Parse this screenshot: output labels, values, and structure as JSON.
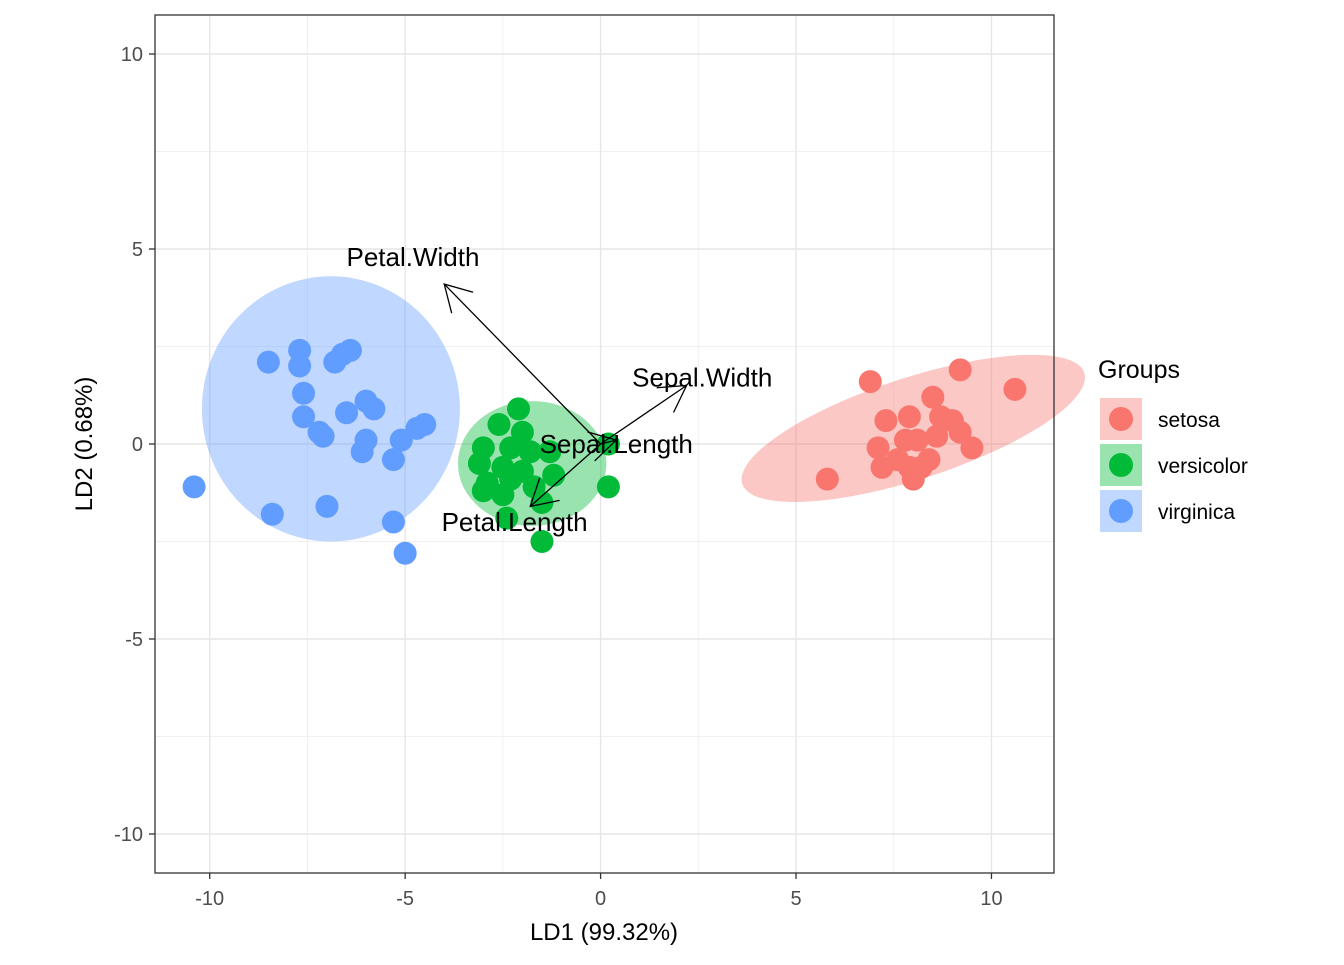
{
  "chart_data": {
    "type": "scatter",
    "xlabel": "LD1 (99.32%)",
    "ylabel": "LD2 (0.68%)",
    "xlim": [
      -11.4,
      11.6
    ],
    "ylim": [
      -11,
      11
    ],
    "x_ticks": [
      -10,
      -5,
      0,
      5,
      10
    ],
    "y_ticks": [
      -10,
      -5,
      0,
      5,
      10
    ],
    "x_tick_labels": [
      "-10",
      "-5",
      "0",
      "5",
      "10"
    ],
    "y_tick_labels": [
      "-10",
      "-5",
      "0",
      "5",
      "10"
    ],
    "grid": true,
    "legend": {
      "title": "Groups",
      "placement": "right",
      "entries": [
        "setosa",
        "versicolor",
        "virginica"
      ]
    },
    "series": [
      {
        "name": "setosa",
        "color": "#F8766D",
        "ellipse": {
          "cx": 8.0,
          "cy": 0.4,
          "rx": 4.6,
          "ry": 1.3,
          "angle_deg": 18
        },
        "points": [
          [
            6.9,
            1.6
          ],
          [
            9.2,
            1.9
          ],
          [
            10.6,
            1.4
          ],
          [
            8.5,
            1.2
          ],
          [
            7.9,
            0.7
          ],
          [
            7.3,
            0.6
          ],
          [
            8.7,
            0.7
          ],
          [
            9.0,
            0.6
          ],
          [
            8.6,
            0.2
          ],
          [
            9.2,
            0.3
          ],
          [
            8.1,
            0.1
          ],
          [
            7.8,
            0.1
          ],
          [
            7.1,
            -0.1
          ],
          [
            9.5,
            -0.1
          ],
          [
            8.4,
            -0.4
          ],
          [
            7.6,
            -0.4
          ],
          [
            8.2,
            -0.6
          ],
          [
            7.9,
            -0.6
          ],
          [
            7.2,
            -0.6
          ],
          [
            8.0,
            -0.9
          ],
          [
            5.8,
            -0.9
          ]
        ]
      },
      {
        "name": "versicolor",
        "color": "#00BA38",
        "ellipse": {
          "cx": -1.75,
          "cy": -0.5,
          "rx": 1.9,
          "ry": 1.6,
          "angle_deg": 0
        },
        "points": [
          [
            -2.1,
            0.9
          ],
          [
            -2.6,
            0.5
          ],
          [
            -2.0,
            0.3
          ],
          [
            -3.0,
            -0.1
          ],
          [
            -2.3,
            -0.1
          ],
          [
            -1.8,
            -0.2
          ],
          [
            -1.3,
            -0.2
          ],
          [
            0.2,
            0.0
          ],
          [
            -3.1,
            -0.5
          ],
          [
            -2.5,
            -0.6
          ],
          [
            -2.0,
            -0.7
          ],
          [
            -1.2,
            -0.8
          ],
          [
            -2.9,
            -1.0
          ],
          [
            -2.3,
            -0.9
          ],
          [
            -1.7,
            -1.1
          ],
          [
            -3.0,
            -1.2
          ],
          [
            -2.5,
            -1.3
          ],
          [
            -1.5,
            -1.5
          ],
          [
            -2.4,
            -1.9
          ],
          [
            -1.5,
            -2.5
          ],
          [
            0.2,
            -1.1
          ]
        ]
      },
      {
        "name": "virginica",
        "color": "#619CFF",
        "ellipse": {
          "cx": -6.9,
          "cy": 0.9,
          "rx": 3.3,
          "ry": 3.4,
          "angle_deg": 0
        },
        "points": [
          [
            -7.7,
            2.4
          ],
          [
            -6.4,
            2.4
          ],
          [
            -6.6,
            2.3
          ],
          [
            -6.8,
            2.1
          ],
          [
            -8.5,
            2.1
          ],
          [
            -7.7,
            2.0
          ],
          [
            -7.6,
            1.3
          ],
          [
            -6.0,
            1.1
          ],
          [
            -5.8,
            0.9
          ],
          [
            -6.5,
            0.8
          ],
          [
            -7.6,
            0.7
          ],
          [
            -4.5,
            0.5
          ],
          [
            -4.7,
            0.4
          ],
          [
            -7.2,
            0.3
          ],
          [
            -7.1,
            0.2
          ],
          [
            -6.0,
            0.1
          ],
          [
            -5.1,
            0.1
          ],
          [
            -6.1,
            -0.2
          ],
          [
            -5.3,
            -0.4
          ],
          [
            -10.4,
            -1.1
          ],
          [
            -8.4,
            -1.8
          ],
          [
            -7.0,
            -1.6
          ],
          [
            -5.3,
            -2.0
          ],
          [
            -5.0,
            -2.8
          ]
        ]
      }
    ],
    "arrows": [
      {
        "label": "Petal.Width",
        "x": -4.0,
        "y": 4.1,
        "label_x": -4.8,
        "label_y": 4.8
      },
      {
        "label": "Sepal.Width",
        "x": 2.2,
        "y": 1.5,
        "label_x": 2.6,
        "label_y": 1.7
      },
      {
        "label": "Sepal.Length",
        "x": 0.4,
        "y": 0.1,
        "label_x": 0.4,
        "label_y": 0.0
      },
      {
        "label": "Petal.Length",
        "x": -1.8,
        "y": -1.6,
        "label_x": -2.2,
        "label_y": -2.0
      }
    ]
  }
}
